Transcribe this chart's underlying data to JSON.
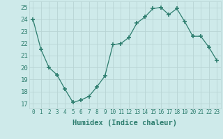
{
  "x": [
    0,
    1,
    2,
    3,
    4,
    5,
    6,
    7,
    8,
    9,
    10,
    11,
    12,
    13,
    14,
    15,
    16,
    17,
    18,
    19,
    20,
    21,
    22,
    23
  ],
  "y": [
    24.0,
    21.5,
    20.0,
    19.4,
    18.2,
    17.1,
    17.3,
    17.6,
    18.4,
    19.3,
    21.9,
    22.0,
    22.5,
    23.7,
    24.2,
    24.9,
    25.0,
    24.4,
    24.9,
    23.8,
    22.6,
    22.6,
    21.7,
    20.6
  ],
  "line_color": "#2d7d6e",
  "marker": "+",
  "marker_size": 4,
  "bg_color": "#ceeaea",
  "grid_color": "#b8d4d4",
  "ylabel_values": [
    17,
    18,
    19,
    20,
    21,
    22,
    23,
    24,
    25
  ],
  "xlabel": "Humidex (Indice chaleur)",
  "ylim": [
    16.6,
    25.5
  ],
  "xlim": [
    -0.5,
    23.5
  ],
  "tick_color": "#2d7d6e",
  "label_color": "#2d7d6e",
  "xlabel_fontsize": 7.5,
  "ytick_fontsize": 6.5,
  "xtick_fontsize": 5.5
}
